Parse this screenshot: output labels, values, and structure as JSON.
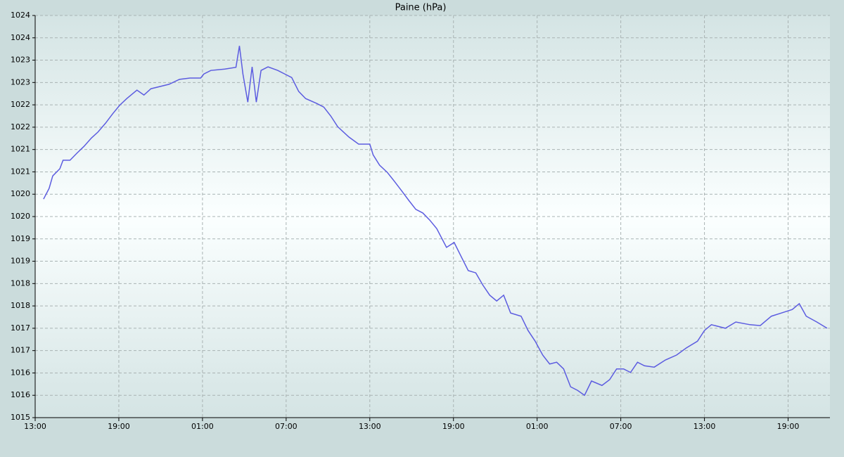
{
  "chart_data": {
    "type": "line",
    "title": "Paine (hPa)",
    "color": "#5c5ce0",
    "grid": true,
    "x": [
      0.6,
      1.0,
      1.26,
      1.77,
      2.0,
      2.5,
      3.0,
      3.5,
      4.04,
      4.5,
      5.05,
      5.56,
      6.06,
      6.57,
      7.3,
      7.8,
      8.3,
      9.6,
      10.35,
      11.1,
      11.87,
      12.1,
      12.6,
      13.6,
      14.4,
      14.65,
      14.9,
      15.25,
      15.56,
      15.86,
      16.2,
      16.7,
      17.4,
      17.9,
      18.4,
      18.9,
      19.4,
      20.2,
      20.7,
      21.2,
      21.7,
      22.5,
      23.2,
      24.0,
      24.24,
      24.7,
      25.25,
      25.76,
      26.3,
      26.8,
      27.3,
      27.8,
      28.3,
      28.8,
      29.5,
      30.05,
      30.56,
      31.06,
      31.6,
      32.1,
      32.6,
      33.1,
      33.6,
      34.1,
      34.85,
      35.35,
      35.86,
      36.4,
      36.9,
      37.4,
      37.9,
      38.4,
      38.9,
      39.4,
      39.9,
      40.65,
      41.2,
      41.7,
      42.2,
      42.7,
      43.2,
      43.7,
      44.4,
      45.2,
      46.0,
      46.7,
      47.5,
      48.0,
      48.5,
      49.5,
      50.25,
      51.26,
      52.0,
      52.8,
      53.5,
      54.3,
      54.8,
      55.3,
      56.06,
      56.8
    ],
    "values": [
      1019.89,
      1020.13,
      1020.41,
      1020.57,
      1020.76,
      1020.76,
      1020.92,
      1021.07,
      1021.26,
      1021.39,
      1021.59,
      1021.8,
      1021.99,
      1022.14,
      1022.33,
      1022.22,
      1022.36,
      1022.46,
      1022.57,
      1022.6,
      1022.6,
      1022.69,
      1022.77,
      1022.8,
      1022.84,
      1023.32,
      1022.69,
      1022.06,
      1022.85,
      1022.06,
      1022.77,
      1022.85,
      1022.77,
      1022.69,
      1022.61,
      1022.3,
      1022.14,
      1022.03,
      1021.95,
      1021.75,
      1021.51,
      1021.28,
      1021.12,
      1021.12,
      1020.88,
      1020.65,
      1020.49,
      1020.29,
      1020.07,
      1019.86,
      1019.66,
      1019.58,
      1019.42,
      1019.23,
      1018.81,
      1018.92,
      1018.6,
      1018.29,
      1018.24,
      1017.97,
      1017.74,
      1017.61,
      1017.74,
      1017.34,
      1017.27,
      1016.95,
      1016.71,
      1016.4,
      1016.2,
      1016.24,
      1016.09,
      1015.69,
      1015.61,
      1015.5,
      1015.82,
      1015.72,
      1015.85,
      1016.09,
      1016.09,
      1016.01,
      1016.24,
      1016.16,
      1016.13,
      1016.29,
      1016.4,
      1016.56,
      1016.71,
      1016.95,
      1017.08,
      1017.0,
      1017.14,
      1017.08,
      1017.06,
      1017.27,
      1017.34,
      1017.42,
      1017.55,
      1017.27,
      1017.14,
      1017.0
    ],
    "xlim": [
      0,
      57
    ],
    "xticks": [
      {
        "value": 0,
        "label": "13:00"
      },
      {
        "value": 6,
        "label": "19:00"
      },
      {
        "value": 12,
        "label": "01:00"
      },
      {
        "value": 18,
        "label": "07:00"
      },
      {
        "value": 24,
        "label": "13:00"
      },
      {
        "value": 30,
        "label": "19:00"
      },
      {
        "value": 36,
        "label": "01:00"
      },
      {
        "value": 42,
        "label": "07:00"
      },
      {
        "value": 48,
        "label": "13:00"
      },
      {
        "value": 54,
        "label": "19:00"
      }
    ],
    "ylim": [
      1015,
      1024
    ],
    "yticks": [
      1015,
      {
        "value": 1015.5,
        "label": "1016"
      },
      1016,
      {
        "value": 1016.5,
        "label": "1017"
      },
      1017,
      {
        "value": 1017.5,
        "label": "1018"
      },
      1018,
      {
        "value": 1018.5,
        "label": "1019"
      },
      1019,
      {
        "value": 1019.5,
        "label": "1020"
      },
      1020,
      {
        "value": 1020.5,
        "label": "1021"
      },
      1021,
      {
        "value": 1021.5,
        "label": "1022"
      },
      1022,
      {
        "value": 1022.5,
        "label": "1023"
      },
      1023,
      {
        "value": 1023.5,
        "label": "1024"
      },
      1024
    ]
  }
}
